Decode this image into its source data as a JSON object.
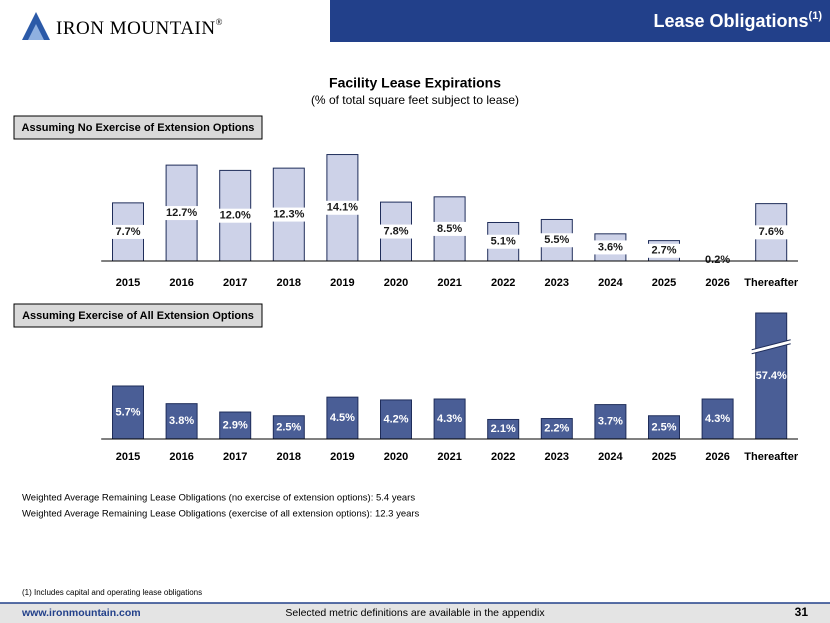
{
  "header": {
    "logo": "IRON MOUNTAIN",
    "logo_mark": "®",
    "title": "Lease Obligations",
    "title_sup": "(1)"
  },
  "title": "Facility Lease Expirations",
  "subtitle": "(% of total square feet subject to lease)",
  "chart_data": [
    {
      "type": "bar",
      "label": "Assuming No Exercise of Extension Options",
      "categories": [
        "2015",
        "2016",
        "2017",
        "2018",
        "2019",
        "2020",
        "2021",
        "2022",
        "2023",
        "2024",
        "2025",
        "2026",
        "Thereafter"
      ],
      "values": [
        7.7,
        12.7,
        12.0,
        12.3,
        14.1,
        7.8,
        8.5,
        5.1,
        5.5,
        3.6,
        2.7,
        0.2,
        7.6
      ],
      "value_labels": [
        "7.7%",
        "12.7%",
        "12.0%",
        "12.3%",
        "14.1%",
        "7.8%",
        "8.5%",
        "5.1%",
        "5.5%",
        "3.6%",
        "2.7%",
        "0.2%",
        "7.6%"
      ],
      "color": "#cdd2e8",
      "border_color": "#1f2d5a",
      "label_color": "#1a1a1a",
      "label_background": "#ffffff"
    },
    {
      "type": "bar",
      "label": "Assuming Exercise of All Extension Options",
      "categories": [
        "2015",
        "2016",
        "2017",
        "2018",
        "2019",
        "2020",
        "2021",
        "2022",
        "2023",
        "2024",
        "2025",
        "2026",
        "Thereafter"
      ],
      "values": [
        5.7,
        3.8,
        2.9,
        2.5,
        4.5,
        4.2,
        4.3,
        2.1,
        2.2,
        3.7,
        2.5,
        4.3,
        57.4
      ],
      "value_labels": [
        "5.7%",
        "3.8%",
        "2.9%",
        "2.5%",
        "4.5%",
        "4.2%",
        "4.3%",
        "2.1%",
        "2.2%",
        "3.7%",
        "2.5%",
        "4.3%",
        "57.4%"
      ],
      "color": "#4a5e96",
      "border_color": "#1f2d5a",
      "label_color": "#ffffff",
      "axis_break": true
    }
  ],
  "notes": [
    "Weighted Average Remaining Lease Obligations (no exercise of extension options):   5.4 years",
    "Weighted Average Remaining Lease Obligations (exercise of all extension options):  12.3 years"
  ],
  "footnote": "(1) Includes capital and operating lease obligations",
  "footer": {
    "url": "www.ironmountain.com",
    "center": "Selected metric definitions are available in the appendix",
    "page": "31"
  }
}
